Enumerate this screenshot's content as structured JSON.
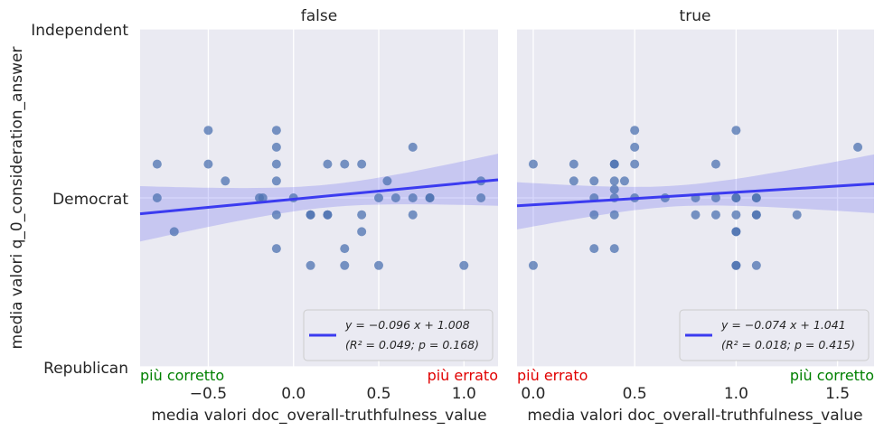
{
  "chart_data": {
    "type": "scatter",
    "ylabel": "media valori q_0_consideration_answer",
    "yticks": [
      {
        "value": 0,
        "label": "Independent"
      },
      {
        "value": 1,
        "label": "Democrat"
      },
      {
        "value": 2,
        "label": "Republican"
      }
    ],
    "ylim": [
      0,
      2
    ],
    "colors": {
      "points": "#4c72b0",
      "line": "#3b3bf0",
      "band": "#3b3bf0",
      "green": "#008000",
      "red": "#e00000"
    },
    "panels": [
      {
        "title": "false",
        "xlabel": "media valori doc_overall-truthfulness_value",
        "xlim": [
          -0.9,
          1.2
        ],
        "xticks": [
          -0.5,
          0.0,
          0.5,
          1.0
        ],
        "xtick_labels": [
          "−0.5",
          "0.0",
          "0.5",
          "1.0"
        ],
        "annotation_left": "più corretto",
        "annotation_left_color": "#008000",
        "annotation_right": "più errato",
        "annotation_right_color": "#e00000",
        "legend_line1": "y = −0.096 x + 1.008",
        "legend_line2": "(R² = 0.049; p = 0.168)",
        "slope": -0.096,
        "intercept": 1.008,
        "points": [
          [
            -0.8,
            0.8
          ],
          [
            -0.8,
            1.0
          ],
          [
            -0.7,
            1.2
          ],
          [
            -0.5,
            0.6
          ],
          [
            -0.5,
            0.8
          ],
          [
            -0.4,
            0.9
          ],
          [
            -0.2,
            1.0
          ],
          [
            -0.18,
            1.0
          ],
          [
            -0.1,
            0.6
          ],
          [
            -0.1,
            0.7
          ],
          [
            -0.1,
            0.8
          ],
          [
            -0.1,
            0.9
          ],
          [
            -0.1,
            1.1
          ],
          [
            -0.1,
            1.3
          ],
          [
            0.0,
            1.0
          ],
          [
            0.1,
            1.1
          ],
          [
            0.1,
            1.1
          ],
          [
            0.1,
            1.4
          ],
          [
            0.2,
            0.8
          ],
          [
            0.2,
            1.1
          ],
          [
            0.2,
            1.1
          ],
          [
            0.3,
            0.8
          ],
          [
            0.3,
            1.3
          ],
          [
            0.3,
            1.4
          ],
          [
            0.4,
            0.8
          ],
          [
            0.4,
            1.1
          ],
          [
            0.4,
            1.2
          ],
          [
            0.5,
            1.0
          ],
          [
            0.5,
            1.4
          ],
          [
            0.55,
            0.9
          ],
          [
            0.6,
            1.0
          ],
          [
            0.7,
            0.7
          ],
          [
            0.7,
            1.0
          ],
          [
            0.7,
            1.1
          ],
          [
            0.8,
            1.0
          ],
          [
            0.8,
            1.0
          ],
          [
            1.0,
            1.4
          ],
          [
            1.1,
            0.9
          ],
          [
            1.1,
            1.0
          ]
        ]
      },
      {
        "title": "true",
        "xlabel": "media valori doc_overall-truthfulness_value",
        "xlim": [
          -0.08,
          1.68
        ],
        "xticks": [
          0.0,
          0.5,
          1.0,
          1.5
        ],
        "xtick_labels": [
          "0.0",
          "0.5",
          "1.0",
          "1.5"
        ],
        "annotation_left": "più errato",
        "annotation_left_color": "#e00000",
        "annotation_right": "più corretto",
        "annotation_right_color": "#008000",
        "legend_line1": "y = −0.074 x + 1.041",
        "legend_line2": "(R² = 0.018; p = 0.415)",
        "slope": -0.074,
        "intercept": 1.041,
        "points": [
          [
            0.0,
            0.8
          ],
          [
            0.0,
            1.4
          ],
          [
            0.2,
            0.8
          ],
          [
            0.2,
            0.9
          ],
          [
            0.3,
            0.9
          ],
          [
            0.3,
            1.0
          ],
          [
            0.3,
            1.1
          ],
          [
            0.3,
            1.3
          ],
          [
            0.4,
            0.8
          ],
          [
            0.4,
            0.8
          ],
          [
            0.4,
            0.9
          ],
          [
            0.4,
            0.95
          ],
          [
            0.4,
            1.0
          ],
          [
            0.4,
            1.1
          ],
          [
            0.4,
            1.3
          ],
          [
            0.45,
            0.9
          ],
          [
            0.5,
            0.6
          ],
          [
            0.5,
            0.7
          ],
          [
            0.5,
            0.8
          ],
          [
            0.5,
            1.0
          ],
          [
            0.65,
            1.0
          ],
          [
            0.8,
            1.0
          ],
          [
            0.8,
            1.1
          ],
          [
            0.9,
            0.8
          ],
          [
            0.9,
            1.0
          ],
          [
            0.9,
            1.1
          ],
          [
            1.0,
            0.6
          ],
          [
            1.0,
            1.0
          ],
          [
            1.0,
            1.0
          ],
          [
            1.0,
            1.1
          ],
          [
            1.0,
            1.2
          ],
          [
            1.0,
            1.2
          ],
          [
            1.0,
            1.4
          ],
          [
            1.0,
            1.4
          ],
          [
            1.1,
            1.0
          ],
          [
            1.1,
            1.0
          ],
          [
            1.1,
            1.1
          ],
          [
            1.1,
            1.1
          ],
          [
            1.1,
            1.4
          ],
          [
            1.3,
            1.1
          ],
          [
            1.6,
            0.7
          ]
        ]
      }
    ]
  }
}
